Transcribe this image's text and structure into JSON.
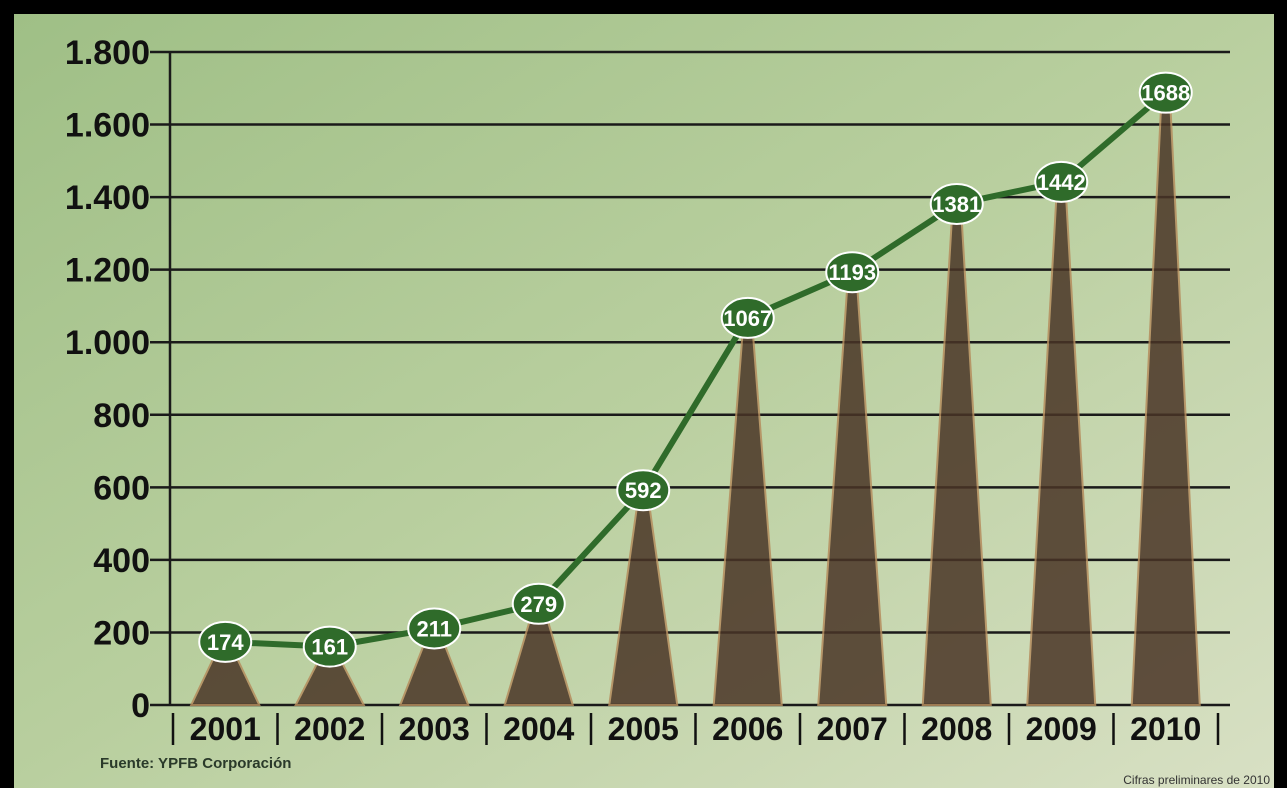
{
  "chart_data": {
    "type": "line",
    "categories": [
      "2001",
      "2002",
      "2003",
      "2004",
      "2005",
      "2006",
      "2007",
      "2008",
      "2009",
      "2010"
    ],
    "values": [
      174,
      161,
      211,
      279,
      592,
      1067,
      1193,
      1381,
      1442,
      1688
    ],
    "color": "#2f6b2a",
    "ylim": [
      0,
      1800
    ],
    "yticks": [
      0,
      200,
      400,
      600,
      800,
      {
        "value": 1000,
        "label": "1.000"
      },
      {
        "value": 1200,
        "label": "1.200"
      },
      {
        "value": 1400,
        "label": "1.400"
      },
      {
        "value": 1600,
        "label": "1.600"
      },
      {
        "value": 1800,
        "label": "1.800"
      }
    ],
    "grid": true,
    "source": "Fuente: YPFB Corporación",
    "note": "Cifras preliminares de 2010"
  }
}
